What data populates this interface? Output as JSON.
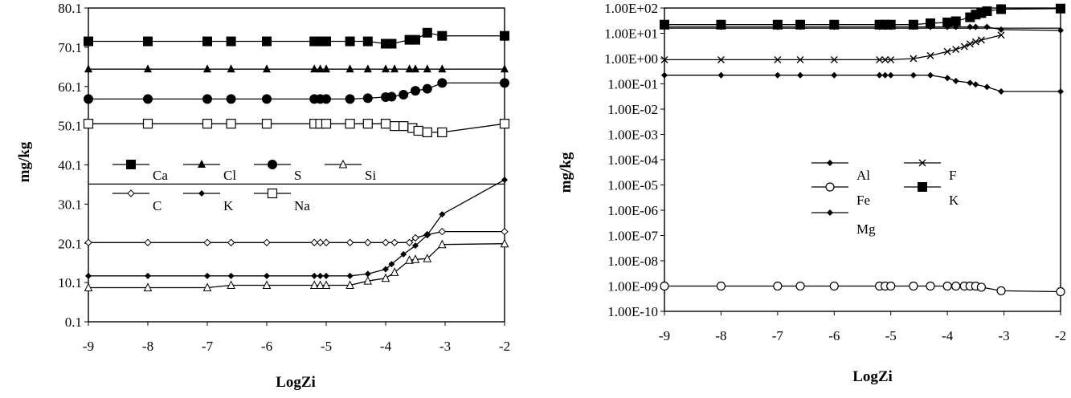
{
  "chart_data": [
    {
      "type": "line",
      "xlabel": "LogZi",
      "ylabel": "mg/kg",
      "xlim": [
        -9,
        -2
      ],
      "ylim": [
        0.1,
        80.1
      ],
      "xticks": [
        "-9",
        "-8",
        "-7",
        "-6",
        "-5",
        "-4",
        "-3",
        "-2"
      ],
      "yticks": [
        "0.1",
        "10.1",
        "20.1",
        "30.1",
        "40.1",
        "50.1",
        "60.1",
        "70.1",
        "80.1"
      ],
      "legend_position": "center-left",
      "grid": false,
      "series": [
        {
          "name": "Ca",
          "marker": "square",
          "x": [
            -9,
            -8,
            -7,
            -6.6,
            -6,
            -5.2,
            -5.1,
            -5.05,
            -5,
            -4.6,
            -4.3,
            -4,
            -3.9,
            -3.6,
            -3.5,
            -3.3,
            -3.05,
            -2
          ],
          "y": [
            71.6,
            71.6,
            71.6,
            71.6,
            71.6,
            71.6,
            71.6,
            71.6,
            71.6,
            71.6,
            71.6,
            71,
            71,
            72,
            72,
            73.8,
            73,
            73
          ]
        },
        {
          "name": "Cl",
          "marker": "triangle",
          "x": [
            -9,
            -8,
            -7,
            -6.6,
            -6,
            -5.2,
            -5.1,
            -5,
            -4.6,
            -4.3,
            -4,
            -3.85,
            -3.6,
            -3.5,
            -3.3,
            -3.05,
            -2
          ],
          "y": [
            64.5,
            64.5,
            64.5,
            64.5,
            64.5,
            64.5,
            64.5,
            64.5,
            64.5,
            64.5,
            64.5,
            64.5,
            64.5,
            64.5,
            64.5,
            64.5,
            64.5
          ]
        },
        {
          "name": "S",
          "marker": "circle",
          "x": [
            -9,
            -8,
            -7,
            -6.6,
            -6,
            -5.2,
            -5.1,
            -5,
            -4.6,
            -4.3,
            -4,
            -3.9,
            -3.7,
            -3.5,
            -3.3,
            -3.05,
            -2
          ],
          "y": [
            56.9,
            56.9,
            56.9,
            56.9,
            56.9,
            56.9,
            56.9,
            56.9,
            56.9,
            57.1,
            57.4,
            57.5,
            58,
            59,
            59.5,
            61,
            61
          ]
        },
        {
          "name": "Si",
          "marker": "open-triangle",
          "x": [
            -9,
            -8,
            -7,
            -6.6,
            -6,
            -5.2,
            -5.1,
            -5,
            -4.6,
            -4.3,
            -4,
            -3.85,
            -3.6,
            -3.5,
            -3.3,
            -3.05,
            -2
          ],
          "y": [
            8.8,
            8.8,
            8.8,
            9.4,
            9.4,
            9.4,
            9.4,
            9.4,
            9.4,
            10.5,
            11.2,
            12.7,
            15.8,
            16,
            16.2,
            19.8,
            20
          ]
        },
        {
          "name": "C",
          "marker": "open-diamond",
          "x": [
            -9,
            -8,
            -7,
            -6.6,
            -6,
            -5.2,
            -5.1,
            -5,
            -4.6,
            -4.3,
            -4,
            -3.85,
            -3.6,
            -3.5,
            -3.3,
            -3.05,
            -2
          ],
          "y": [
            20.3,
            20.3,
            20.3,
            20.3,
            20.3,
            20.3,
            20.3,
            20.3,
            20.3,
            20.3,
            20.3,
            20.3,
            20.3,
            21.5,
            22.3,
            23.1,
            23.1
          ]
        },
        {
          "name": "K",
          "marker": "diamond",
          "x": [
            -9,
            -8,
            -7,
            -6.6,
            -6,
            -5.2,
            -5.1,
            -5,
            -4.6,
            -4.3,
            -4,
            -3.9,
            -3.7,
            -3.5,
            -3.3,
            -3.05,
            -2
          ],
          "y": [
            11.8,
            11.8,
            11.8,
            11.8,
            11.8,
            11.8,
            11.8,
            11.8,
            11.8,
            12.3,
            13.5,
            14.8,
            17.3,
            19.5,
            22.2,
            27.5,
            36.3
          ]
        },
        {
          "name": "Na",
          "marker": "open-square",
          "x": [
            -9,
            -8,
            -7,
            -6.6,
            -6,
            -5.2,
            -5.1,
            -5,
            -4.6,
            -4.3,
            -4,
            -3.85,
            -3.7,
            -3.55,
            -3.45,
            -3.3,
            -3.05,
            -2
          ],
          "y": [
            50.6,
            50.6,
            50.6,
            50.6,
            50.6,
            50.6,
            50.6,
            50.6,
            50.6,
            50.6,
            50.6,
            50,
            50,
            49.5,
            48.8,
            48.4,
            48.4,
            50.6
          ]
        },
        {
          "name": "",
          "marker": "none",
          "x": [
            -9,
            -3.05,
            -3.05,
            -2
          ],
          "y": [
            35.2,
            35.2,
            35.2,
            35.2
          ]
        }
      ]
    },
    {
      "type": "line",
      "xlabel": "LogZi",
      "ylabel": "mg/kg",
      "xlim": [
        -9,
        -2
      ],
      "ylim": [
        1e-10,
        100
      ],
      "yscale": "log",
      "xticks": [
        "-9",
        "-8",
        "-7",
        "-6",
        "-5",
        "-4",
        "-3",
        "-2"
      ],
      "yticks": [
        "1.00E+02",
        "1.00E+01",
        "1.00E+00",
        "1.00E-01",
        "1.00E-02",
        "1.00E-03",
        "1.00E-04",
        "1.00E-05",
        "1.00E-06",
        "1.00E-07",
        "1.00E-08",
        "1.00E-09",
        "1.00E-10"
      ],
      "legend_position": "center",
      "grid": false,
      "series": [
        {
          "name": "Al",
          "marker": "diamond",
          "x": [
            -9,
            -8,
            -7,
            -6.6,
            -6,
            -5.2,
            -5.1,
            -5,
            -4.6,
            -4.3,
            -4,
            -3.85,
            -3.6,
            -3.5,
            -3.3,
            -3.05,
            -2
          ],
          "y": [
            18,
            18,
            18,
            18,
            18,
            18,
            18,
            18,
            18,
            18,
            18,
            18,
            18,
            18,
            18,
            14,
            13
          ]
        },
        {
          "name": "F",
          "marker": "cross",
          "x": [
            -9,
            -8,
            -7,
            -6.6,
            -6,
            -5.2,
            -5.1,
            -5,
            -4.6,
            -4.3,
            -4,
            -3.85,
            -3.7,
            -3.6,
            -3.5,
            -3.4,
            -3.05
          ],
          "y": [
            0.9,
            0.9,
            0.9,
            0.9,
            0.9,
            0.9,
            0.9,
            0.9,
            1.0,
            1.3,
            1.9,
            2.3,
            3.0,
            3.8,
            4.6,
            5.4,
            8.5
          ]
        },
        {
          "name": "Fe",
          "marker": "open-circle",
          "x": [
            -9,
            -8,
            -7,
            -6.6,
            -6,
            -5.2,
            -5.1,
            -5,
            -4.6,
            -4.3,
            -4,
            -3.85,
            -3.7,
            -3.6,
            -3.5,
            -3.4,
            -3.05,
            -2
          ],
          "y": [
            1e-09,
            1e-09,
            1e-09,
            1e-09,
            1e-09,
            1e-09,
            1e-09,
            1e-09,
            1e-09,
            1e-09,
            1e-09,
            1e-09,
            1e-09,
            1e-09,
            1e-09,
            9e-10,
            6.5e-10,
            6e-10
          ]
        },
        {
          "name": "K",
          "marker": "square",
          "x": [
            -9,
            -8,
            -7,
            -6.6,
            -6,
            -5.2,
            -5.1,
            -5,
            -4.6,
            -4.3,
            -4,
            -3.85,
            -3.6,
            -3.5,
            -3.4,
            -3.3,
            -3.05,
            -2
          ],
          "y": [
            22,
            22,
            22,
            22,
            22,
            22,
            22,
            22,
            22,
            25,
            27,
            30,
            43,
            55,
            63,
            75,
            90,
            95
          ]
        },
        {
          "name": "Mg",
          "marker": "diamond",
          "x": [
            -9,
            -8,
            -7,
            -6.6,
            -6,
            -5.2,
            -5.1,
            -5,
            -4.6,
            -4.3,
            -4,
            -3.85,
            -3.6,
            -3.5,
            -3.3,
            -3.05,
            -2
          ],
          "y": [
            0.22,
            0.22,
            0.22,
            0.22,
            0.22,
            0.22,
            0.22,
            0.22,
            0.22,
            0.22,
            0.17,
            0.13,
            0.11,
            0.095,
            0.075,
            0.05,
            0.05
          ]
        },
        {
          "name": "",
          "marker": "none",
          "x": [
            -9,
            -2
          ],
          "y": [
            16,
            16
          ]
        }
      ]
    }
  ]
}
